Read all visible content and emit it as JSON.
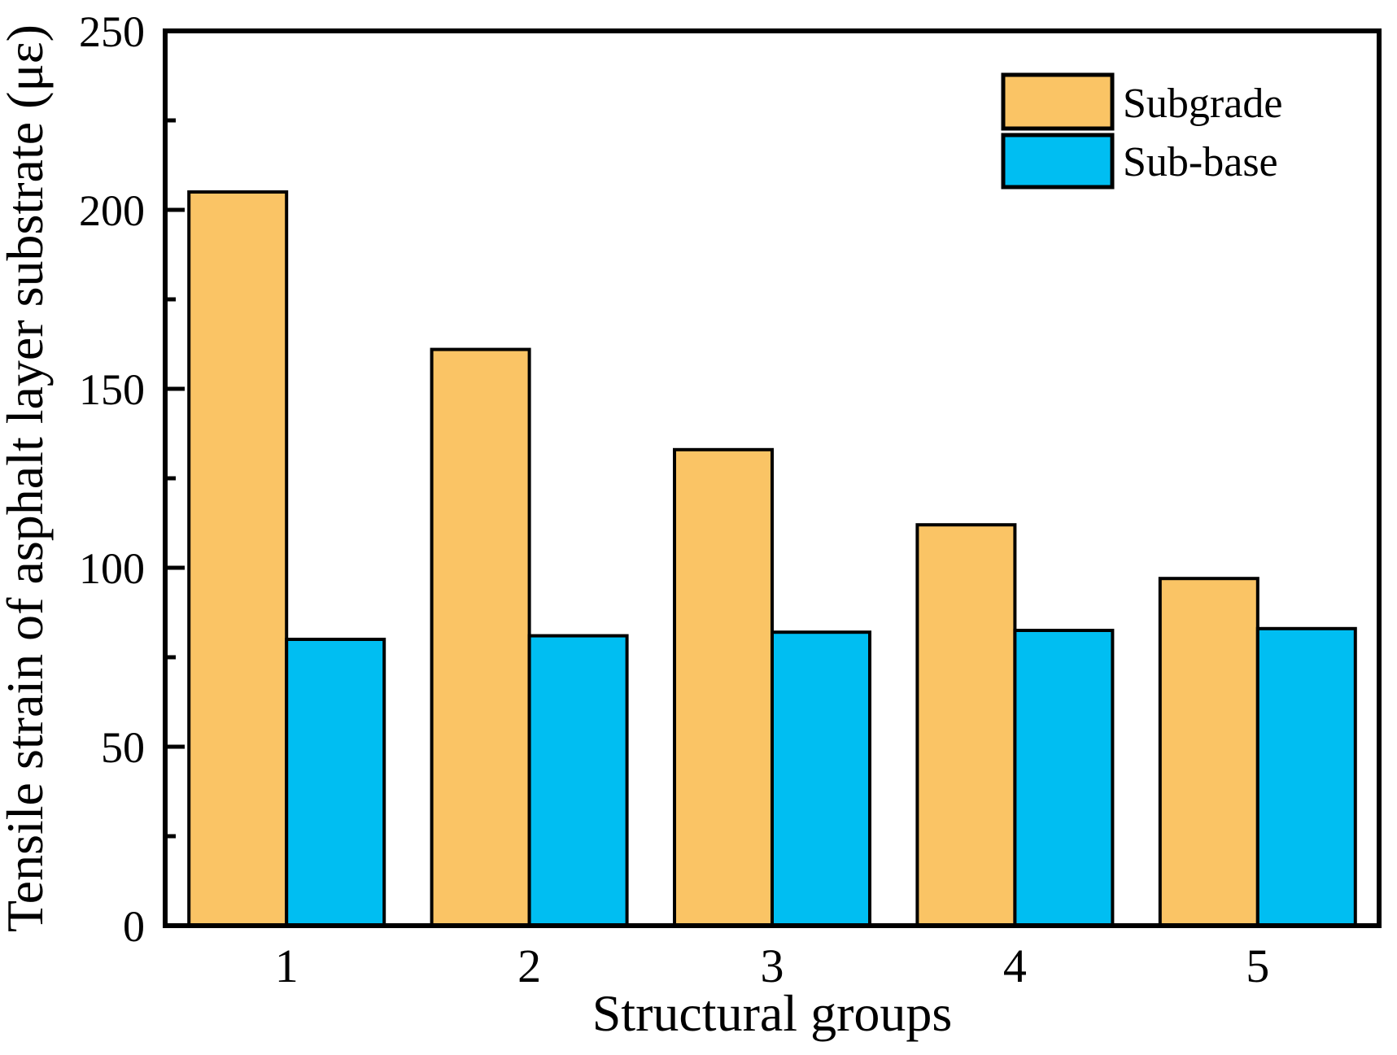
{
  "chart_data": {
    "type": "bar",
    "title": "",
    "xlabel": "Structural groups",
    "ylabel": "Tensile strain of asphalt layer substrate (με)",
    "categories": [
      "1",
      "2",
      "3",
      "4",
      "5"
    ],
    "series": [
      {
        "name": "Subgrade",
        "color": "#FAC465",
        "edge_color": "#000000",
        "values": [
          205,
          161,
          133,
          112,
          97
        ]
      },
      {
        "name": "Sub-base",
        "color": "#00BEF2",
        "edge_color": "#000000",
        "values": [
          80,
          81,
          82,
          82.5,
          83
        ]
      }
    ],
    "ylim": [
      0,
      250
    ],
    "yticks": [
      0,
      50,
      100,
      150,
      200,
      250
    ],
    "yticks_minor": [
      25,
      75,
      125,
      175,
      225
    ],
    "grid": false,
    "legend_position": "top-right-inside",
    "legend_border": false,
    "frame": "full-box",
    "tick_direction": "in"
  }
}
